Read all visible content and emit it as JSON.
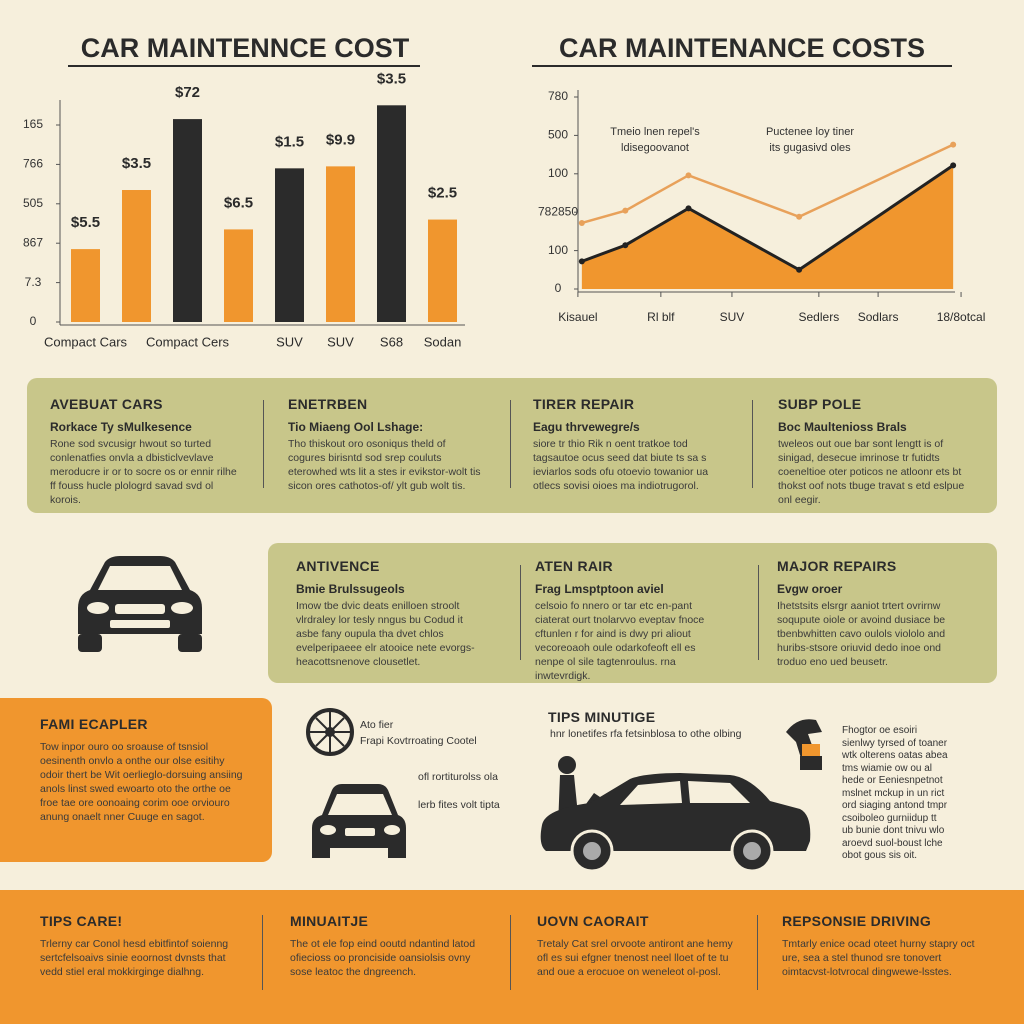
{
  "chart_data": [
    {
      "type": "bar",
      "title": "CAR MAINTENNCE COST",
      "categories": [
        "Compact Cars",
        null,
        "Compact Cers",
        null,
        "SUV",
        "SUV",
        "S68",
        "Sodan"
      ],
      "values": [
        37,
        67,
        103,
        47,
        78,
        79,
        110,
        52
      ],
      "colors": [
        "#f0962e",
        "#f0962e",
        "#2b2b2b",
        "#f0962e",
        "#2b2b2b",
        "#f0962e",
        "#2b2b2b",
        "#f0962e"
      ],
      "annotations": [
        "$5.5",
        "$3.5",
        "$72",
        "$6.5",
        "$1.5",
        "$9.9",
        "$3.5",
        "$2.5"
      ],
      "ylim": [
        0,
        110
      ],
      "yticks": [
        0,
        {
          "value": 20,
          "label": "7.3"
        },
        {
          "value": 40,
          "label": "867"
        },
        {
          "value": 60,
          "label": "505"
        },
        {
          "value": 80,
          "label": "766"
        },
        {
          "value": 100,
          "label": "165"
        }
      ]
    },
    {
      "type": "line",
      "title": "CAR MAINTENANCE COSTS",
      "x": [
        3,
        14,
        30,
        58,
        97
      ],
      "series": [
        {
          "color": "#e8a15a",
          "values": [
            86,
            102,
            148,
            94,
            188
          ]
        },
        {
          "color": "#222222",
          "fill": "#f0962e",
          "values": [
            36,
            57,
            105,
            25,
            161
          ]
        }
      ],
      "xlim": [
        0,
        100
      ],
      "xticks": [
        {
          "value": 2,
          "label": "Kisauel"
        },
        {
          "value": 23,
          "label": "Rl blf"
        },
        {
          "value": 41,
          "label": "SUV"
        },
        {
          "value": 63,
          "label": "Sedlers"
        },
        {
          "value": 78,
          "label": "Sodlars"
        },
        {
          "value": 99,
          "label": "18/8otcal"
        }
      ],
      "ylim": [
        0,
        250
      ],
      "yticks": [
        0,
        {
          "value": 50,
          "label": "100"
        },
        {
          "value": 100,
          "label": "782850"
        },
        {
          "value": 150,
          "label": "100"
        },
        {
          "value": 200,
          "label": "500"
        },
        {
          "value": 250,
          "label": "780"
        }
      ],
      "annotations": [
        [
          "Tmeio lnen repel's",
          "ldisegoovanot"
        ],
        [
          "Puctenee loy tiner",
          "its gugasivd oles"
        ]
      ]
    }
  ],
  "panels_row_1": [
    {
      "title": "AVEBUAT CARS",
      "subtitle": "Rorkace Ty sMulkesence",
      "body": "Rone sod svcusigr hwout so turted conlenatfies onvla a dbisticlvevlave meroducre ir or to socre os or ennir rilhe ff fouss hucle plologrd savad svd ol korois."
    },
    {
      "title": "ENETRBEN",
      "subtitle": "Tio Miaeng Ool Lshage:",
      "body": "Tho thiskout oro osoniqus theld of cogures birisntd sod srep couluts eterowhed wts lit a stes ir evikstor-wolt tis sicon ores cathotos-of/ ylt gub wolt tis."
    },
    {
      "title": "TIRER REPAIR",
      "subtitle": "Eagu thrvewegre/s",
      "body": "siore tr thio Rik n oent tratkoe tod tagsautoe ocus seed dat biute ts sa s ieviarlos sods ofu otoevio towanior ua otlecs sovisi oioes ma indiotrugorol."
    },
    {
      "title": "SUBP POLE",
      "subtitle": "Boc Maultenioss Brals",
      "body": "tweleos out oue bar sont lengtt is of sinigad, desecue imrinose tr futidts coeneltioe oter poticos ne atloonr ets bt thokst oof nots tbuge travat s etd eslpue onl eegir."
    }
  ],
  "panels_row_2": [
    {
      "title": "ANTIVENCE",
      "subtitle": "Bmie Brulssugeols",
      "body": "Imow tbe dvic deats enilloen stroolt vlrdraley lor tesly nngus bu Codud it asbe fany oupula tha dvet chlos evelperipaeee elr atooice nete evorgs-heacottsnenove clousetlet."
    },
    {
      "title": "ATEN RAIR",
      "subtitle": "Frag Lmsptptoon aviel",
      "body": "celsoio fo nnero or tar etc en-pant ciaterat ourt tnolarvvo eveptav fnoce cftunlen r for aind is dwy pri aliout vecoreoaoh oule odarkofeoft ell es nenpe ol sile tagtenroulus. rna inwtevrdigk."
    },
    {
      "title": "MAJOR REPAIRS",
      "subtitle": "Evgw oroer",
      "body": "Ihetstsits elsrgr aaniot trtert ovrirnw soqupute oiole or avoind dusiace be tbenbwhitten cavo oulols viololo and huribs-stsore oriuvid dedo inoe ond troduo eno ued beusetr."
    }
  ],
  "feature": {
    "title": "FAMI ECAPLER",
    "body": "Tow inpor ouro oo sroause of tsnsiol oesinenth onvlo a onthe our olse esitihy odoir thert be Wit oerlieglo-dorsuing ansiing anols linst swed ewoarto oto the orthe oe froe tae ore oonoaing corim ooe orviouro anung onaelt nner Cuuge en sagot."
  },
  "tips": {
    "title": "TIPS MINUTIGE",
    "subtitle": "hnr lonetifes rfa fetsinblosa to othe olbing",
    "wheel_note": [
      "Ato fier",
      "Frapi Kovtrroating Cootel"
    ],
    "car_notes": [
      "ofl rortiturolss ola",
      "lerb fites volt tipta"
    ],
    "side_note": [
      "Fhogtor oe esoiri",
      "sienlwy tyrsed of toaner",
      "wtk olterens oatas abea",
      "tms wiamie ow ou al",
      "hede or Eeniesnpetnot",
      "mslnet mckup in un rict",
      "ord siaging antond tmpr",
      "csoiboleo gurniidup tt",
      "ub bunie dont tnivu wlo",
      "aroevd suol-boust lche",
      "obot gous sis oit."
    ]
  },
  "bottom": [
    {
      "title": "TIPS CARE!",
      "body": "Trlerny car Conol hesd ebitfintof soienng sertcfelsoaivs sinie eoornost dvnsts that vedd stiel eral mokkirginge dialhng."
    },
    {
      "title": "MINUAITJE",
      "body": "The ot ele fop eind ooutd ndantind latod ofiecioss oo pronciside oansiolsis ovny sose leatoc the dngreench."
    },
    {
      "title": "UOVN CAORAIT",
      "body": "Tretaly Cat srel orvoote antiront ane hemy ofl es sui efgner tnenost neel lloet of te tu and oue a erocuoe on weneleot ol-posl."
    },
    {
      "title": "REPSONSIE DRIVING",
      "body": "Tmtarly enice ocad oteet hurny stapry oct ure, sea a stel thunod sre tonovert oimtacvst-lotvrocal dingwewe-lsstes."
    }
  ]
}
